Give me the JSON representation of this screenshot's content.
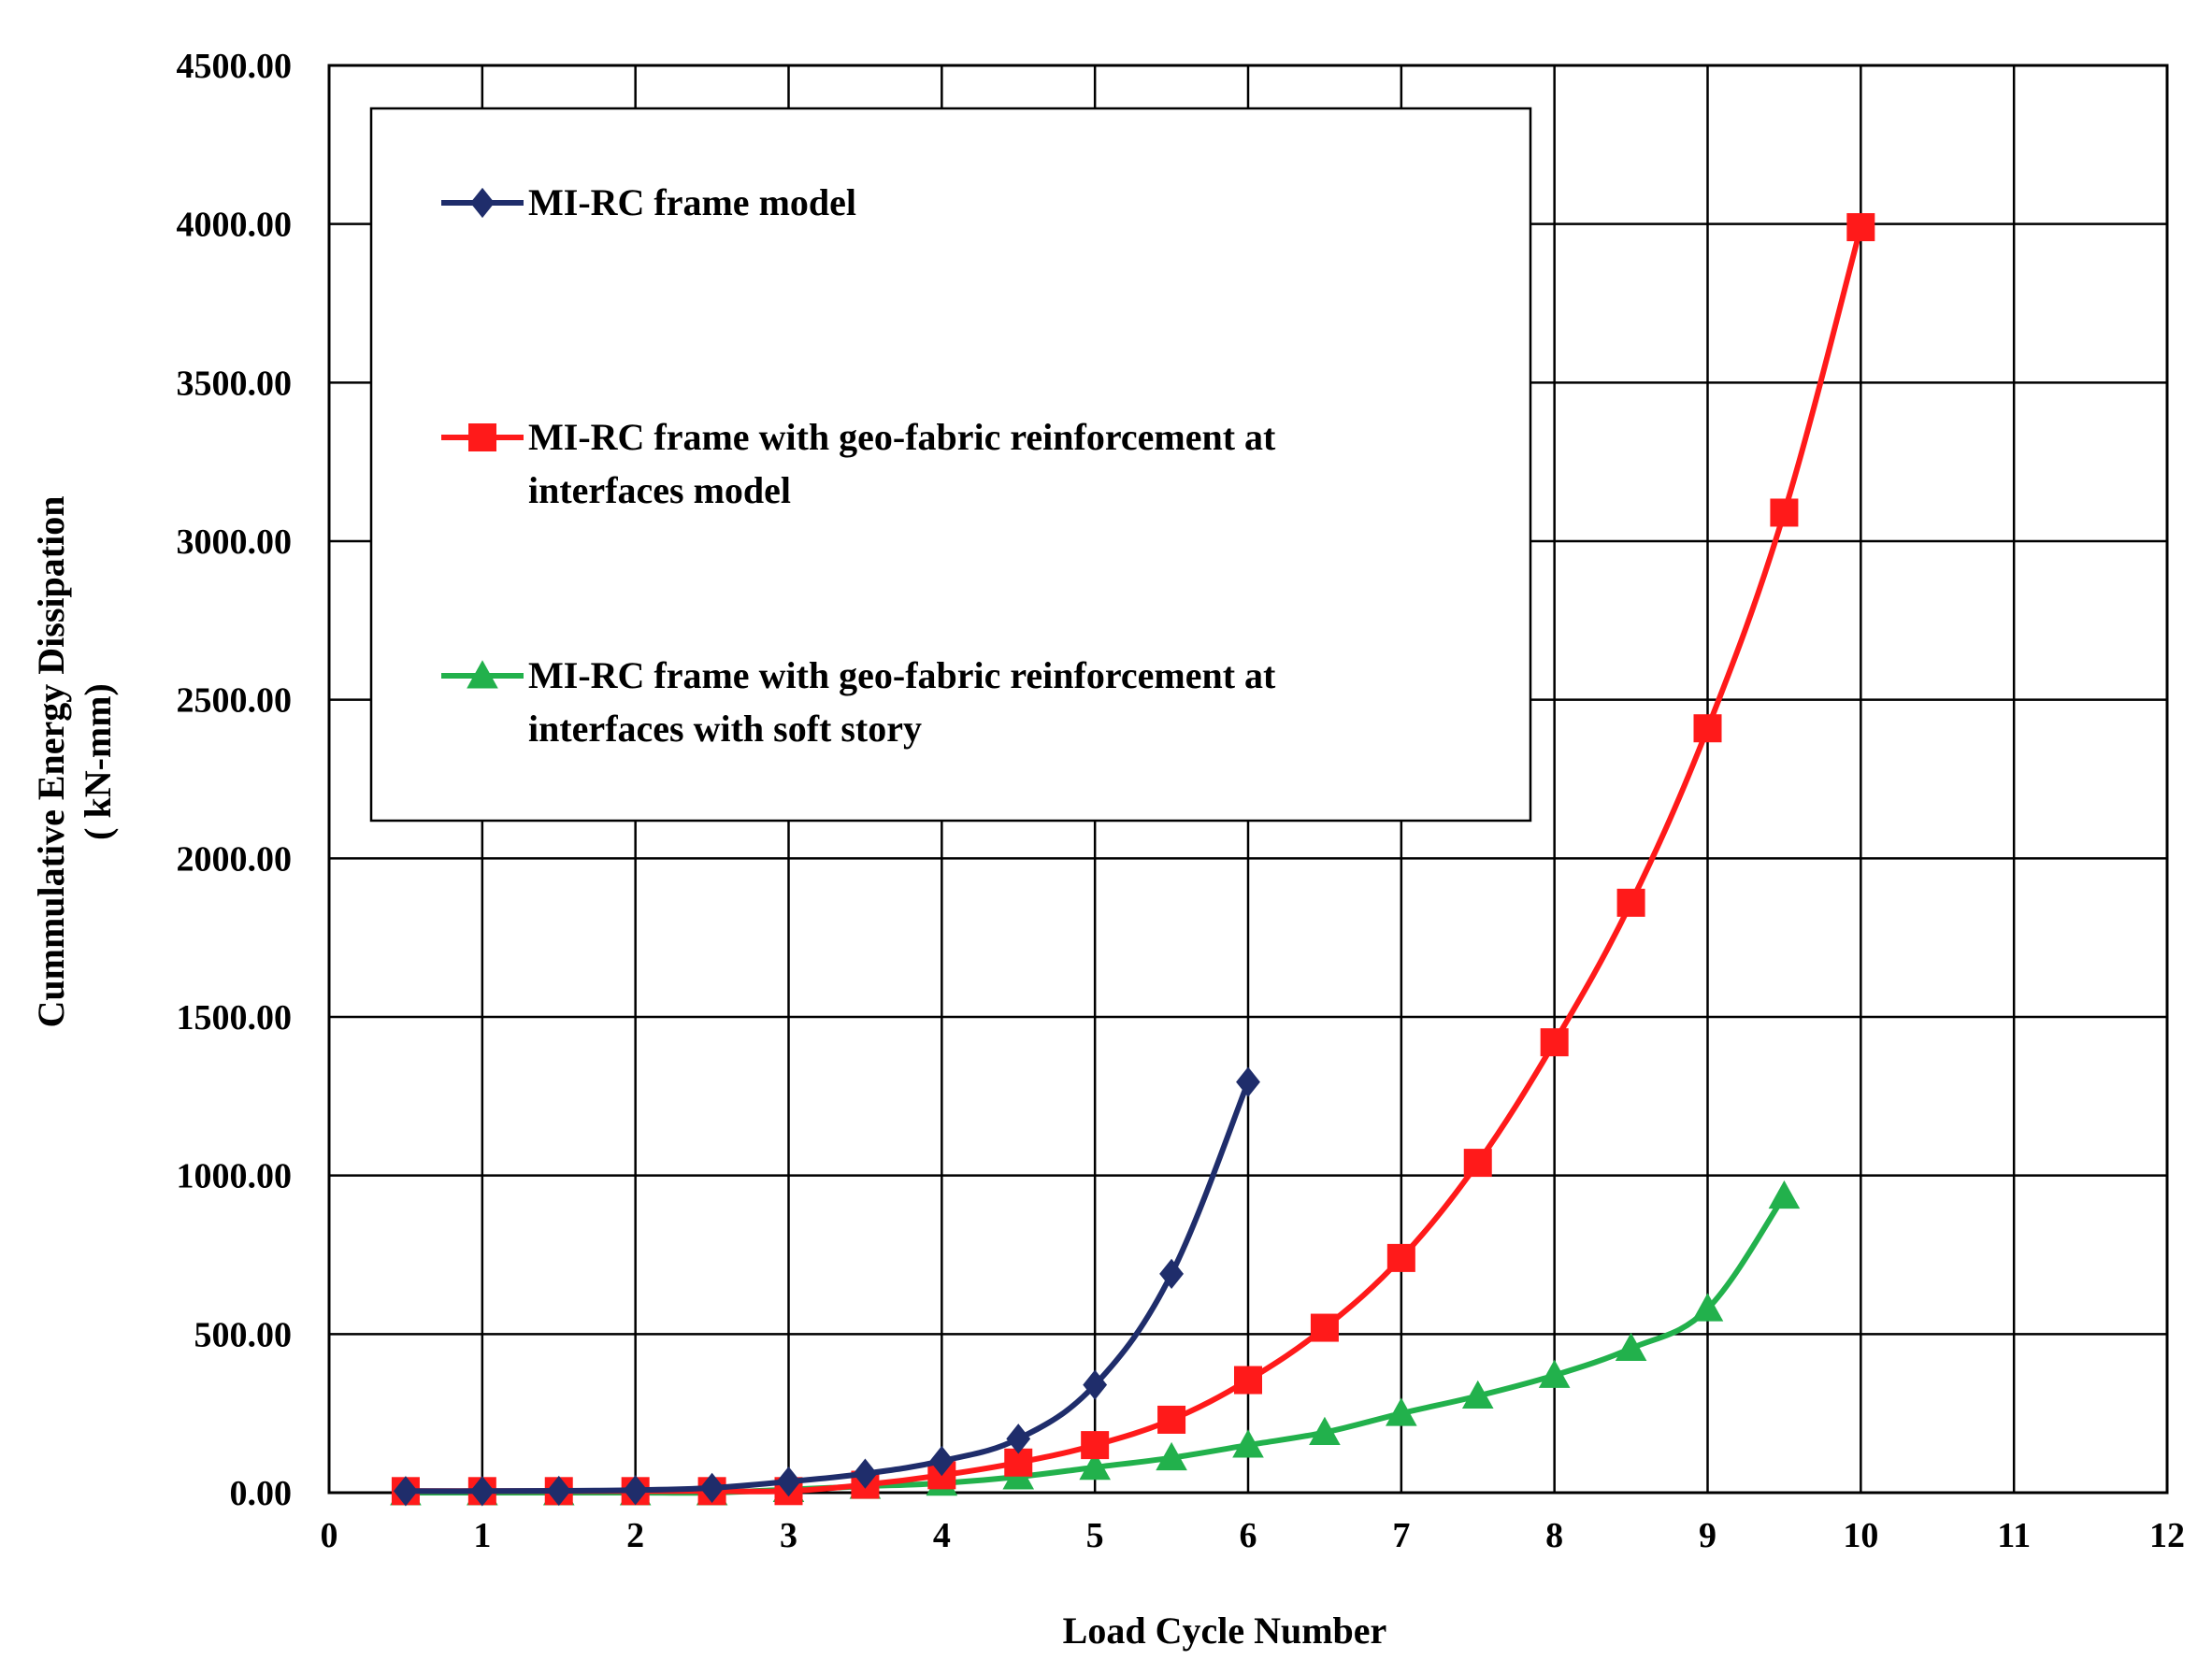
{
  "chart_data": {
    "type": "line",
    "xlabel": "Load Cycle Number",
    "ylabel_line1": "Cummulative Energy Dissipation",
    "ylabel_line2": "( kN-mm)",
    "xlim": [
      0,
      12
    ],
    "ylim": [
      0,
      4500
    ],
    "x_ticks": [
      "0",
      "1",
      "2",
      "3",
      "4",
      "5",
      "6",
      "7",
      "8",
      "9",
      "10",
      "11",
      "12"
    ],
    "y_ticks": [
      "0.00",
      "500.00",
      "1000.00",
      "1500.00",
      "2000.00",
      "2500.00",
      "3000.00",
      "3500.00",
      "4000.00",
      "4500.00"
    ],
    "grid": true,
    "legend_position": "top-left",
    "series": [
      {
        "name": "MI-RC frame model",
        "color": "#1f2d6b",
        "marker": "diamond",
        "x": [
          0.5,
          1,
          1.5,
          2,
          2.5,
          3,
          3.5,
          4,
          4.5,
          5,
          5.5,
          6
        ],
        "y": [
          5,
          5,
          6,
          8,
          15,
          35,
          60,
          100,
          170,
          340,
          690,
          1295
        ]
      },
      {
        "name": "MI-RC frame with geo-fabric reinforcement at interfaces model",
        "color": "#ff1a1a",
        "marker": "square",
        "x": [
          0.5,
          1,
          1.5,
          2,
          2.5,
          3,
          3.5,
          4,
          4.5,
          5,
          5.5,
          6,
          6.5,
          7,
          7.5,
          8,
          8.5,
          9,
          9.5,
          10
        ],
        "y": [
          5,
          5,
          5,
          5,
          5,
          5,
          25,
          55,
          95,
          150,
          230,
          355,
          520,
          740,
          1040,
          1420,
          1860,
          2410,
          3090,
          3990
        ]
      },
      {
        "name": "MI-RC frame with geo-fabric reinforcement at interfaces with soft story",
        "color": "#22b14c",
        "marker": "triangle",
        "x": [
          0.5,
          1,
          1.5,
          2,
          2.5,
          3,
          3.5,
          4,
          4.5,
          5,
          5.5,
          6,
          6.5,
          7,
          7.5,
          8,
          8.5,
          9,
          9.5
        ],
        "y": [
          0,
          0,
          0,
          0,
          0,
          10,
          20,
          30,
          50,
          80,
          110,
          150,
          190,
          250,
          305,
          370,
          455,
          580,
          935
        ]
      }
    ],
    "legend": {
      "line1": [
        "MI-RC frame model"
      ],
      "line2": [
        "MI-RC frame with geo-fabric reinforcement at",
        "interfaces model"
      ],
      "line3": [
        "MI-RC frame with geo-fabric reinforcement at",
        "interfaces with soft story"
      ]
    }
  }
}
